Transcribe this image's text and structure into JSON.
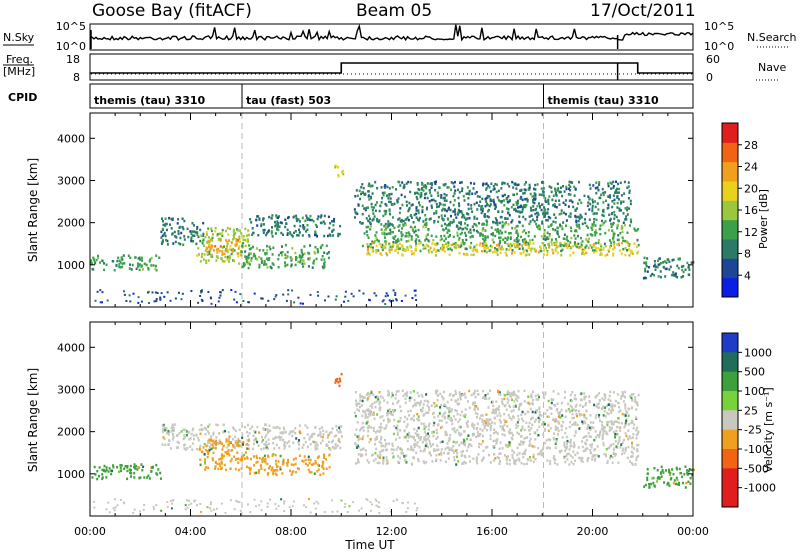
{
  "header": {
    "station": "Goose Bay (fitACF)",
    "beam": "Beam 05",
    "date": "17/Oct/2011"
  },
  "summary": {
    "nsky_label": "N.Sky",
    "nsky_ticks": [
      "10^5",
      "10^0"
    ],
    "nsearch_label": "N.Search",
    "nsearch_ticks": [
      "10^5",
      "10^0"
    ],
    "freq_label": "Freq.",
    "freq_unit": "[MHz]",
    "freq_ticks": [
      "18",
      "8"
    ],
    "nave_label": "Nave",
    "nave_ticks": [
      "60",
      "0"
    ],
    "cpid_label": "CPID",
    "cpid_segments": [
      {
        "label": "themis (tau) 3310",
        "start_hour": 0,
        "end_hour": 6.05
      },
      {
        "label": "tau (fast) 503",
        "start_hour": 6.05,
        "end_hour": 18.05
      },
      {
        "label": "themis (tau) 3310",
        "start_hour": 18.05,
        "end_hour": 24
      }
    ],
    "freq_step": [
      {
        "start_hour": 0,
        "end_hour": 10,
        "level": "low"
      },
      {
        "start_hour": 10,
        "end_hour": 21.8,
        "level": "high"
      },
      {
        "start_hour": 21.8,
        "end_hour": 24,
        "level": "low"
      }
    ]
  },
  "chart_data": [
    {
      "type": "heatmap",
      "name": "power",
      "xlabel": "",
      "ylabel": "Slant Range [km]",
      "xlim": [
        0,
        24
      ],
      "ylim": [
        0,
        4600
      ],
      "yticks": [
        1000,
        2000,
        3000,
        4000
      ],
      "ytick_labels": [
        "1000",
        "2000",
        "3000",
        "4000"
      ],
      "colorbar": {
        "label": "Power [dB]",
        "range": [
          0,
          32
        ],
        "ticks": [
          "28",
          "24",
          "20",
          "16",
          "12",
          "8",
          "4"
        ],
        "tick_values": [
          28,
          24,
          20,
          16,
          12,
          8,
          4
        ],
        "colors": [
          "#0a1ee6",
          "#1e4696",
          "#2a7a66",
          "#3aa04a",
          "#9ac83a",
          "#e8d21e",
          "#f0a01e",
          "#f06414",
          "#e01e1e"
        ]
      },
      "regions": [
        {
          "t0": 0.0,
          "t1": 2.8,
          "r0": 900,
          "r1": 1250,
          "level": 12
        },
        {
          "t0": 2.8,
          "t1": 4.5,
          "r0": 1500,
          "r1": 2150,
          "level": 8
        },
        {
          "t0": 4.2,
          "t1": 6.3,
          "r0": 1050,
          "r1": 1900,
          "level": 18
        },
        {
          "t0": 4.6,
          "t1": 6.0,
          "r0": 1250,
          "r1": 1650,
          "level": 24
        },
        {
          "t0": 6.3,
          "t1": 10.0,
          "r0": 1700,
          "r1": 2200,
          "level": 10
        },
        {
          "t0": 6.0,
          "t1": 9.5,
          "r0": 950,
          "r1": 1500,
          "level": 14
        },
        {
          "t0": 9.7,
          "t1": 10.1,
          "r0": 3100,
          "r1": 3400,
          "level": 22
        },
        {
          "t0": 10.5,
          "t1": 21.5,
          "r0": 2000,
          "r1": 3000,
          "level": 8
        },
        {
          "t0": 10.8,
          "t1": 21.8,
          "r0": 1350,
          "r1": 2000,
          "level": 14
        },
        {
          "t0": 11.0,
          "t1": 21.8,
          "r0": 1250,
          "r1": 1550,
          "level": 20
        },
        {
          "t0": 22.0,
          "t1": 24.0,
          "r0": 700,
          "r1": 1200,
          "level": 10
        }
      ]
    },
    {
      "type": "heatmap",
      "name": "velocity",
      "xlabel": "Time UT",
      "ylabel": "Slant Range [km]",
      "xlim": [
        0,
        24
      ],
      "ylim": [
        0,
        4600
      ],
      "xticks": [
        0,
        4,
        8,
        12,
        16,
        20,
        24
      ],
      "xtick_labels": [
        "00:00",
        "04:00",
        "08:00",
        "12:00",
        "16:00",
        "20:00",
        "00:00"
      ],
      "yticks": [
        1000,
        2000,
        3000,
        4000
      ],
      "ytick_labels": [
        "1000",
        "2000",
        "3000",
        "4000"
      ],
      "colorbar": {
        "label": "Velocity [m s⁻¹]",
        "ticks": [
          "1000",
          "500",
          "100",
          "25",
          "-25",
          "-100",
          "-500",
          "-1000"
        ],
        "colors": [
          "#1e3cc8",
          "#1e6e5a",
          "#3ca03c",
          "#78d23c",
          "#c8c8c0",
          "#f0a01e",
          "#f06414",
          "#e01e1e",
          "#e01e1e"
        ]
      },
      "regions": [
        {
          "t0": 0.0,
          "t1": 2.8,
          "r0": 900,
          "r1": 1250,
          "vel": "100"
        },
        {
          "t0": 2.8,
          "t1": 10.0,
          "r0": 1600,
          "r1": 2200,
          "vel": "25"
        },
        {
          "t0": 4.3,
          "t1": 6.3,
          "r0": 1100,
          "r1": 1850,
          "vel": "-100"
        },
        {
          "t0": 6.2,
          "t1": 9.5,
          "r0": 1000,
          "r1": 1500,
          "vel": "-100"
        },
        {
          "t0": 9.7,
          "t1": 10.1,
          "r0": 3100,
          "r1": 3400,
          "vel": "-500"
        },
        {
          "t0": 10.5,
          "t1": 21.8,
          "r0": 1250,
          "r1": 3000,
          "vel": "25"
        },
        {
          "t0": 22.0,
          "t1": 24.0,
          "r0": 700,
          "r1": 1200,
          "vel": "100"
        }
      ]
    }
  ]
}
